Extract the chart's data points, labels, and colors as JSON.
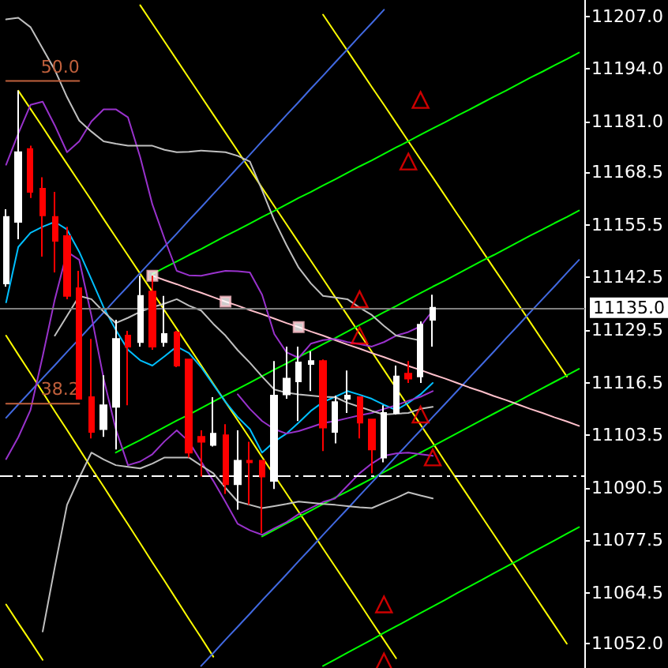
{
  "chart_data": {
    "type": "candlestick",
    "categories": [
      null,
      null,
      null,
      null,
      null,
      null,
      null,
      null,
      null,
      null,
      null,
      null,
      null,
      null,
      null,
      null,
      null,
      null,
      null,
      null,
      null,
      null,
      null,
      null,
      null,
      null,
      null,
      null,
      null,
      null,
      null,
      null,
      null,
      null,
      null,
      null,
      null,
      null,
      null,
      null,
      null,
      null,
      null,
      null,
      null,
      null,
      null,
      null
    ],
    "ohlc": [
      [
        11141,
        11159.3,
        11140.2,
        11157.4
      ],
      [
        11156.2,
        11188.6,
        11151.9,
        11173.4
      ],
      [
        11174.2,
        11175,
        11162.1,
        11163.6
      ],
      [
        11164.4,
        11167.2,
        11147.6,
        11157.8
      ],
      [
        11157.4,
        11163.6,
        11143.7,
        11151.5
      ],
      [
        11152.7,
        11155,
        11137.1,
        11137.9
      ],
      [
        11139.8,
        11144.1,
        11112.5,
        11112.5
      ],
      [
        11112.9,
        11127.3,
        11102.7,
        11104.3
      ],
      [
        11105,
        11118.3,
        11103.1,
        11110.9
      ],
      [
        11110.5,
        11132,
        11100,
        11127.3
      ],
      [
        11128.1,
        11129.3,
        11110.9,
        11125.4
      ],
      [
        11126.5,
        11142.9,
        11125.4,
        11137.9
      ],
      [
        11139,
        11142.9,
        11124.6,
        11125.4
      ],
      [
        11126.5,
        11137.9,
        11125.4,
        11128.5
      ],
      [
        11128.9,
        11129.3,
        11120.3,
        11120.7
      ],
      [
        11122.2,
        11122.2,
        11098,
        11099.2
      ],
      [
        11103.1,
        11104.7,
        11093.3,
        11101.9
      ],
      [
        11101.1,
        11112.9,
        11100.7,
        11103.9
      ],
      [
        11103.5,
        11106.2,
        11089,
        11091.4
      ],
      [
        11091.4,
        11104.7,
        11085.1,
        11097.2
      ],
      [
        11097.2,
        11101.9,
        11086.3,
        11096.8
      ],
      [
        11097.2,
        11097.2,
        11079.3,
        11093.3
      ],
      [
        11092.2,
        11121.8,
        11090.2,
        11113.3
      ],
      [
        11113.6,
        11125.4,
        11112.5,
        11117.5
      ],
      [
        11116.8,
        11125.4,
        11107,
        11121.5
      ],
      [
        11121.1,
        11124.2,
        11114.4,
        11121.8
      ],
      [
        11121.8,
        11122.2,
        11099.6,
        11105.4
      ],
      [
        11104.3,
        11113.3,
        11101.5,
        11111.7
      ],
      [
        11112.5,
        11119.5,
        11109,
        11113.3
      ],
      [
        11112.9,
        11112.9,
        11102.7,
        11106.6
      ],
      [
        11107.4,
        11107.4,
        11094.1,
        11100
      ],
      [
        11098,
        11110.9,
        11096.8,
        11109
      ],
      [
        11109,
        11120.7,
        11108.6,
        11118
      ],
      [
        11118.7,
        11121.8,
        11116.4,
        11117.5
      ],
      [
        11118,
        11131.6,
        11116.4,
        11130.8
      ],
      [
        11132,
        11138.2,
        11125.4,
        11135
      ],
      null,
      null,
      null,
      null,
      null,
      null,
      null,
      null,
      null,
      null,
      null,
      null
    ],
    "colors": [
      "#ffffff",
      "#ffffff",
      "#ff0000",
      "#ff0000",
      "#ff0000",
      "#ff0000",
      "#ff0000",
      "#ff0000",
      "#ffffff",
      "#ffffff",
      "#ff0000",
      "#ffffff",
      "#ff0000",
      "#ffffff",
      "#ff0000",
      "#ff0000",
      "#ff0000",
      "#ffffff",
      "#ff0000",
      "#ffffff",
      "#ff0000",
      "#ff0000",
      "#ffffff",
      "#ffffff",
      "#ffffff",
      "#ffffff",
      "#ff0000",
      "#ffffff",
      "#ffffff",
      "#ff0000",
      "#ff0000",
      "#ffffff",
      "#ffffff",
      "#ff0000",
      "#ffffff",
      "#ffffff",
      null,
      null,
      null,
      null,
      null,
      null,
      null,
      null,
      null,
      null,
      null,
      null
    ],
    "series": [
      {
        "type": "line",
        "color": "#ffff00",
        "values": [
          null,
          11188.6,
          11184.1,
          11179.6,
          11175.0,
          11170.5,
          11166.0,
          11161.5,
          11156.9,
          11152.4,
          11147.9,
          11143.4,
          11138.9,
          11134.3,
          11129.8,
          11125.3,
          11120.8,
          11116.2,
          11111.7,
          11107.2,
          11102.7,
          11098.1,
          11093.6,
          11089.1,
          11084.6,
          11080.1,
          11075.5,
          11071.0,
          11066.5,
          11062.0,
          11057.4,
          11052.9,
          11048.4,
          null,
          null,
          null,
          null,
          null,
          null,
          null,
          null,
          null,
          null,
          null,
          null,
          null,
          null,
          null
        ]
      },
      {
        "type": "line",
        "color": "#ffff00",
        "values": [
          null,
          null,
          null,
          null,
          null,
          null,
          null,
          null,
          null,
          null,
          null,
          11209.7,
          11205.2,
          11200.7,
          11196.2,
          11191.7,
          11187.2,
          11182.7,
          11178.2,
          11173.7,
          11169.2,
          11164.6,
          11160.1,
          11155.6,
          11151.1,
          11146.6,
          11142.1,
          11137.6,
          11133.1,
          11128.6,
          11124.1,
          11119.6,
          11115.1,
          11110.6,
          11106.1,
          11101.6,
          11097.0,
          11092.5,
          11088.0,
          11083.5,
          11079.0,
          11074.5,
          11070.0,
          11065.5,
          11061.0,
          11056.5,
          11052.0,
          null
        ]
      },
      {
        "type": "line",
        "color": "#ffff00",
        "values": [
          null,
          null,
          null,
          null,
          null,
          null,
          null,
          null,
          null,
          null,
          null,
          null,
          null,
          null,
          null,
          null,
          null,
          null,
          null,
          null,
          null,
          null,
          null,
          null,
          null,
          null,
          11207.4,
          11202.9,
          11198.5,
          11194.0,
          11189.5,
          11185.1,
          11180.6,
          11176.1,
          11171.6,
          11167.2,
          11162.7,
          11158.2,
          11153.8,
          11149.3,
          11144.8,
          11140.4,
          11135.9,
          11131.4,
          11126.9,
          11122.5,
          11118.0,
          null
        ]
      },
      {
        "type": "line",
        "color": "#ffff00",
        "values": [
          11128.1,
          11123.4,
          11118.8,
          11114.1,
          11109.4,
          11104.8,
          11100.1,
          11095.4,
          11090.8,
          11086.1,
          11081.5,
          11076.8,
          11072.1,
          11067.5,
          11062.8,
          11058.1,
          11053.5,
          11048.8,
          null,
          null,
          null,
          null,
          null,
          null,
          null,
          null,
          null,
          null,
          null,
          null,
          null,
          null,
          null,
          null,
          null,
          null,
          null,
          null,
          null,
          null,
          null,
          null,
          null,
          null,
          null,
          null,
          null,
          null
        ]
      },
      {
        "type": "line",
        "color": "#ffff00",
        "values": [
          11061.7,
          11057.1,
          11052.6,
          11048.0,
          null,
          null,
          null,
          null,
          null,
          null,
          null,
          null,
          null,
          null,
          null,
          null,
          null,
          null,
          null,
          null,
          null,
          null,
          null,
          null,
          null,
          null,
          null,
          null,
          null,
          null,
          null,
          null,
          null,
          null,
          null,
          null,
          null,
          null,
          null,
          null,
          null,
          null,
          null,
          null,
          null,
          null,
          null,
          null
        ]
      },
      {
        "type": "line",
        "color": "#00ff00",
        "values": [
          null,
          null,
          null,
          null,
          null,
          null,
          null,
          null,
          null,
          null,
          null,
          null,
          11143.3,
          11144.9,
          11146.4,
          11148.0,
          11149.5,
          11151.1,
          11152.7,
          11154.2,
          11155.8,
          11157.4,
          11158.9,
          11160.5,
          11162.1,
          11163.6,
          11165.2,
          11166.7,
          11168.3,
          11169.9,
          11171.4,
          11173.0,
          11174.6,
          11176.1,
          11177.7,
          11179.3,
          11180.8,
          11182.4,
          11183.9,
          11185.5,
          11187.1,
          11188.6,
          11190.2,
          11191.8,
          11193.3,
          11194.9,
          11196.4,
          11198.0
        ]
      },
      {
        "type": "line",
        "color": "#00ff00",
        "values": [
          null,
          null,
          null,
          null,
          null,
          null,
          null,
          null,
          null,
          11099.2,
          11100.8,
          11102.3,
          11103.9,
          11105.5,
          11107.1,
          11108.6,
          11110.2,
          11111.8,
          11113.4,
          11114.9,
          11116.5,
          11118.1,
          11119.7,
          11121.2,
          11122.8,
          11124.4,
          11126.0,
          11127.5,
          11129.1,
          11130.7,
          11132.3,
          11133.9,
          11135.4,
          11137.0,
          11138.6,
          11140.2,
          11141.7,
          11143.3,
          11144.9,
          11146.5,
          11148.0,
          11149.6,
          11151.2,
          11152.8,
          11154.3,
          11155.9,
          11157.4,
          11159.0
        ]
      },
      {
        "type": "line",
        "color": "#00ff00",
        "values": [
          null,
          null,
          null,
          null,
          null,
          null,
          null,
          null,
          null,
          null,
          null,
          null,
          null,
          null,
          null,
          null,
          null,
          null,
          null,
          null,
          null,
          11078.5,
          11080.1,
          11081.7,
          11083.3,
          11084.9,
          11086.5,
          11088.1,
          11089.6,
          11091.2,
          11092.8,
          11094.4,
          11096.0,
          11097.6,
          11099.2,
          11100.8,
          11102.4,
          11104.0,
          11105.6,
          11107.2,
          11108.8,
          11110.4,
          11111.9,
          11113.5,
          11115.1,
          11116.7,
          11118.3,
          11119.9
        ]
      },
      {
        "type": "line",
        "color": "#00ff00",
        "values": [
          null,
          null,
          null,
          null,
          null,
          null,
          null,
          null,
          null,
          null,
          null,
          null,
          null,
          null,
          null,
          null,
          null,
          null,
          null,
          null,
          null,
          null,
          null,
          null,
          null,
          null,
          11046.5,
          11048.1,
          11049.8,
          11051.4,
          11053.0,
          11054.7,
          11056.3,
          11057.9,
          11059.6,
          11061.2,
          11062.8,
          11064.5,
          11066.1,
          11067.7,
          11069.4,
          11071.0,
          11072.6,
          11074.3,
          11075.9,
          11077.5,
          11079.2,
          11080.8
        ]
      },
      {
        "type": "line",
        "color": "#4169e1",
        "values": [
          11107.8,
          11111.1,
          11114.3,
          11117.6,
          11120.8,
          11124.1,
          11127.3,
          11130.6,
          11133.8,
          11137.1,
          11140.3,
          11143.6,
          11146.8,
          11150.1,
          11153.3,
          11156.6,
          11159.8,
          11163.1,
          11166.3,
          11169.6,
          11172.8,
          11176.1,
          11179.3,
          11182.6,
          11185.8,
          11189.1,
          11192.3,
          11195.6,
          11198.8,
          11202.1,
          11205.3,
          11208.6,
          null,
          null,
          null,
          null,
          null,
          null,
          null,
          null,
          null,
          null,
          null,
          null,
          null,
          null,
          null,
          null
        ]
      },
      {
        "type": "line",
        "color": "#4169e1",
        "values": [
          null,
          null,
          null,
          null,
          null,
          null,
          null,
          null,
          null,
          null,
          null,
          null,
          null,
          null,
          null,
          null,
          11046.5,
          11049.7,
          11053.0,
          11056.2,
          11059.4,
          11062.7,
          11065.9,
          11069.1,
          11072.4,
          11075.6,
          11078.9,
          11082.1,
          11085.3,
          11088.6,
          11091.8,
          11095.0,
          11098.3,
          11101.5,
          11104.7,
          11108.0,
          11111.2,
          11114.4,
          11117.7,
          11120.9,
          11124.1,
          11127.4,
          11130.6,
          11133.9,
          11137.1,
          11140.3,
          11143.6,
          11146.8
        ]
      },
      {
        "type": "line",
        "color": "#ffc0cb",
        "values": [
          null,
          null,
          null,
          null,
          null,
          null,
          null,
          null,
          null,
          null,
          null,
          null,
          11142.9,
          11141.8,
          11140.8,
          11139.7,
          11138.7,
          11137.6,
          11136.5,
          11135.5,
          11134.4,
          11133.4,
          11132.3,
          11131.2,
          11130.2,
          11129.1,
          11128.1,
          11127.0,
          11125.9,
          11124.9,
          11123.8,
          11122.8,
          11121.7,
          11120.6,
          11119.6,
          11118.5,
          11117.5,
          11116.4,
          11115.3,
          11114.3,
          11113.2,
          11112.2,
          11111.1,
          11110.0,
          11109.0,
          11107.9,
          11106.9,
          11105.8
        ]
      },
      {
        "type": "scatter",
        "color": "#ffc0cb",
        "marker": "square",
        "values": [
          null,
          null,
          null,
          null,
          null,
          null,
          null,
          null,
          null,
          null,
          null,
          null,
          11142.9,
          null,
          null,
          null,
          null,
          null,
          11136.5,
          null,
          null,
          null,
          null,
          null,
          11130.2,
          null,
          null,
          null,
          null,
          null,
          null,
          null,
          null,
          null,
          null,
          null,
          null,
          null,
          null,
          null,
          null,
          null,
          null,
          null,
          null,
          null,
          null,
          null
        ]
      },
      {
        "type": "line",
        "color": "#00bfff",
        "values": [
          11136.3,
          11150,
          11153.5,
          11155,
          11156.2,
          11154.3,
          11148.8,
          11142,
          11135.1,
          11129.5,
          11124.6,
          11122,
          11120.7,
          11123,
          11125.4,
          11123.8,
          11120.3,
          11116,
          11111.7,
          11108,
          11105,
          11099.2,
          11101.9,
          11103.9,
          11106.6,
          11109.5,
          11111.7,
          11113,
          11114.4,
          11113.5,
          11112.5,
          11111,
          11109.7,
          11111.5,
          11113.6,
          11116.4,
          null,
          null,
          null,
          null,
          null,
          null,
          null,
          null,
          null,
          null,
          null,
          null
        ]
      },
      {
        "type": "line",
        "color": "#9932cc",
        "values": [
          11170.3,
          11178,
          11185.1,
          11185.9,
          11180,
          11173.4,
          11176.1,
          11181,
          11184,
          11184,
          11182,
          11172.2,
          11160.5,
          11152,
          11144.1,
          11143,
          11142.9,
          11143.5,
          11144.1,
          11144,
          11143.7,
          11138.2,
          11128.5,
          11124,
          11122.6,
          11126.1,
          11127,
          11127.3,
          11126.5,
          11126,
          11125.4,
          11126.5,
          11128.1,
          11129,
          11130.4,
          11134.3,
          null,
          null,
          null,
          null,
          null,
          null,
          null,
          null,
          null,
          null,
          null,
          null
        ]
      },
      {
        "type": "line",
        "color": "#9932cc",
        "values": [
          11097.6,
          11103,
          11109.7,
          11123,
          11137.1,
          11148.8,
          11146.8,
          11133,
          11117.5,
          11105,
          11096.1,
          11097,
          11098.8,
          11102,
          11104.7,
          11101.9,
          11097,
          11092.2,
          11087,
          11081.6,
          11080,
          11078.9,
          11080.5,
          11082,
          11084,
          11085.5,
          11087,
          11087.9,
          11091,
          11094.1,
          11096.5,
          11098.4,
          11099,
          11099.2,
          11098.8,
          11098.4,
          null,
          null,
          null,
          null,
          null,
          null,
          null,
          null,
          null,
          null,
          null,
          null
        ]
      },
      {
        "type": "line",
        "color": "#9932cc",
        "values": [
          null,
          null,
          null,
          null,
          null,
          null,
          null,
          null,
          null,
          null,
          null,
          null,
          null,
          null,
          null,
          null,
          null,
          null,
          null,
          11113.6,
          11110,
          11107,
          11105,
          11103.9,
          11104.5,
          11105.5,
          11106.5,
          11107,
          11107.7,
          11108.4,
          11109,
          11110,
          11110.9,
          11112,
          11113,
          11114.4,
          null,
          null,
          null,
          null,
          null,
          null,
          null,
          null,
          null,
          null,
          null,
          null
        ]
      },
      {
        "type": "line",
        "color": "#c0c0c0",
        "values": [
          11206.2,
          11206.6,
          11204.3,
          11199,
          11193.7,
          11187,
          11181.2,
          11178.5,
          11176.1,
          11175.5,
          11175,
          11175,
          11175,
          11174,
          11173.4,
          11173.5,
          11173.8,
          11173.6,
          11173.4,
          11172.5,
          11171.1,
          11164,
          11156.6,
          11150.5,
          11144.9,
          11141,
          11137.9,
          11137.5,
          11137.1,
          11135,
          11133.2,
          11130.5,
          11128.1,
          11127.5,
          11126.9,
          null,
          null,
          null,
          null,
          null,
          null,
          null,
          null,
          null,
          null,
          null,
          null,
          null
        ]
      },
      {
        "type": "line",
        "color": "#c0c0c0",
        "values": [
          null,
          null,
          null,
          null,
          11128.1,
          11133,
          11137.9,
          11137.1,
          11134,
          11131.2,
          11132.5,
          11134,
          11135.1,
          11136,
          11137.1,
          11135.5,
          11134.3,
          11131,
          11128.1,
          11124.5,
          11121.4,
          11118,
          11114.8,
          11114,
          11113.6,
          11113.3,
          11113,
          11112.9,
          11111.5,
          11110.5,
          11109.5,
          11108.6,
          11108.8,
          11109,
          11110,
          11110.5,
          null,
          null,
          null,
          null,
          null,
          null,
          null,
          null,
          null,
          null,
          null,
          null
        ]
      },
      {
        "type": "line",
        "color": "#c0c0c0",
        "values": [
          null,
          null,
          null,
          11055,
          11071,
          11086.3,
          11093,
          11099.2,
          11097.5,
          11096.1,
          11095.7,
          11095.3,
          11096.5,
          11098,
          11098,
          11098,
          11096,
          11094.1,
          11090.5,
          11087.1,
          11086.3,
          11085.5,
          11086,
          11086.5,
          11087.1,
          11086.8,
          11086.5,
          11086.3,
          11086,
          11085.7,
          11085.5,
          11086.8,
          11088,
          11089.4,
          11088.6,
          11087.9,
          null,
          null,
          null,
          null,
          null,
          null,
          null,
          null,
          null,
          null,
          null,
          null
        ]
      },
      {
        "type": "scatter",
        "color": "#ff0000",
        "marker": "triangle",
        "values": [
          null,
          null,
          null,
          null,
          null,
          null,
          null,
          null,
          null,
          null,
          null,
          null,
          null,
          null,
          null,
          null,
          null,
          null,
          null,
          null,
          null,
          null,
          null,
          null,
          null,
          null,
          null,
          null,
          null,
          11137.1,
          null,
          11061.7,
          null,
          null,
          11186.3,
          null,
          null,
          null,
          null,
          null,
          null,
          null,
          null,
          null,
          null,
          null,
          null,
          null
        ]
      },
      {
        "type": "scatter",
        "color": "#ff0000",
        "marker": "triangle",
        "values": [
          null,
          null,
          null,
          null,
          null,
          null,
          null,
          null,
          null,
          null,
          null,
          null,
          null,
          null,
          null,
          null,
          null,
          null,
          null,
          null,
          null,
          null,
          null,
          null,
          null,
          null,
          null,
          null,
          null,
          11128.1,
          null,
          11047.6,
          null,
          11171.1,
          11108.6,
          11098,
          null,
          null,
          null,
          null,
          null,
          null,
          null,
          null,
          null,
          null,
          null,
          null
        ]
      },
      {
        "type": "line",
        "name": "50.0",
        "color": "#c0603c",
        "values": [
          11191,
          11191,
          11191,
          11191,
          11191,
          11191,
          11191,
          null,
          null,
          null,
          null,
          null,
          null,
          null,
          null,
          null,
          null,
          null,
          null,
          null,
          null,
          null,
          null,
          null,
          null,
          null,
          null,
          null,
          null,
          null,
          null,
          null,
          null,
          null,
          null,
          null,
          null,
          null,
          null,
          null,
          null,
          null,
          null,
          null,
          null,
          null,
          null,
          null
        ]
      },
      {
        "type": "line",
        "name": "38.2",
        "color": "#c0603c",
        "values": [
          11111.3,
          11111.3,
          11111.3,
          11111.3,
          11111.3,
          11111.3,
          11111.3,
          null,
          null,
          null,
          null,
          null,
          null,
          null,
          null,
          null,
          null,
          null,
          null,
          null,
          null,
          null,
          null,
          null,
          null,
          null,
          null,
          null,
          null,
          null,
          null,
          null,
          null,
          null,
          null,
          null,
          null,
          null,
          null,
          null,
          null,
          null,
          null,
          null,
          null,
          null,
          null,
          null
        ]
      }
    ],
    "ref_lines": [
      {
        "axis": "y",
        "value": 11093.5,
        "color": "#ffffff",
        "line_style": "dashed"
      },
      {
        "axis": "y",
        "value": 11135,
        "label": "11135.0",
        "color": "#808080"
      }
    ],
    "ylim": [
      11046,
      11211
    ],
    "yticks": [
      {
        "value": 11207,
        "label": "11207.0"
      },
      {
        "value": 11194,
        "label": "11194.0"
      },
      {
        "value": 11181,
        "label": "11181.0"
      },
      11168.5,
      11155.5,
      11142.5,
      11129.5,
      11116.5,
      11103.5,
      11090.5,
      11077.5,
      11064.5,
      {
        "value": 11052,
        "label": "11052.0"
      }
    ],
    "tick_labels": "y",
    "grid": false
  }
}
